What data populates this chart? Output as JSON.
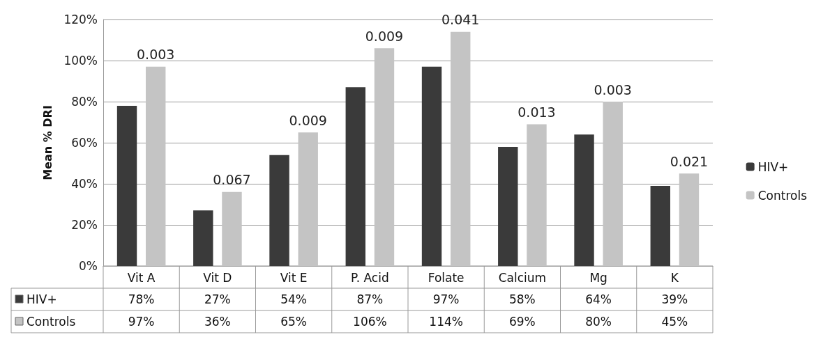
{
  "chart_data": {
    "type": "bar",
    "ylabel": "Mean % DRI",
    "categories": [
      "Vit A",
      "Vit D",
      "Vit E",
      "P. Acid",
      "Folate",
      "Calcium",
      "Mg",
      "K"
    ],
    "series": [
      {
        "name": "HIV+",
        "color": "#3a3a3a",
        "values": [
          78,
          27,
          54,
          87,
          97,
          58,
          64,
          39
        ],
        "value_labels": [
          "78%",
          "27%",
          "54%",
          "87%",
          "97%",
          "58%",
          "64%",
          "39%"
        ]
      },
      {
        "name": "Controls",
        "color": "#c4c4c4",
        "values": [
          97,
          36,
          65,
          106,
          114,
          69,
          80,
          45
        ],
        "value_labels": [
          "97%",
          "36%",
          "65%",
          "106%",
          "114%",
          "69%",
          "80%",
          "45%"
        ]
      }
    ],
    "ylim": [
      0,
      120
    ],
    "yticks": [
      {
        "value": 0,
        "label": "0%"
      },
      {
        "value": 20,
        "label": "20%"
      },
      {
        "value": 40,
        "label": "40%"
      },
      {
        "value": 60,
        "label": "60%"
      },
      {
        "value": 80,
        "label": "80%"
      },
      {
        "value": 100,
        "label": "100%"
      },
      {
        "value": 120,
        "label": "120%"
      }
    ],
    "grid": "y",
    "legend": "right",
    "annotations": [
      "0.003",
      "0.067",
      "0.009",
      "0.009",
      "0.041",
      "0.013",
      "0.003",
      "0.021"
    ]
  }
}
